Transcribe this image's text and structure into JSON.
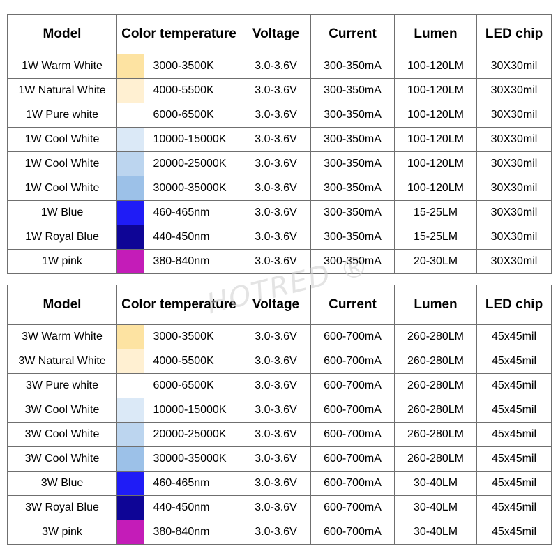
{
  "headers": {
    "model": "Model",
    "color_temperature": "Color temperature",
    "voltage": "Voltage",
    "current": "Current",
    "lumen": "Lumen",
    "led_chip": "LED chip"
  },
  "watermark": "HOTRED ®",
  "table_1w": [
    {
      "model": "1W Warm White",
      "swatch": "#fde3a2",
      "temp": "3000-3500K",
      "voltage": "3.0-3.6V",
      "current": "300-350mA",
      "lumen": "100-120LM",
      "chip": "30X30mil"
    },
    {
      "model": "1W Natural White",
      "swatch": "#fff0d2",
      "temp": "4000-5500K",
      "voltage": "3.0-3.6V",
      "current": "300-350mA",
      "lumen": "100-120LM",
      "chip": "30X30mil"
    },
    {
      "model": "1W Pure white",
      "swatch": "#ffffff",
      "temp": "6000-6500K",
      "voltage": "3.0-3.6V",
      "current": "300-350mA",
      "lumen": "100-120LM",
      "chip": "30X30mil"
    },
    {
      "model": "1W Cool White",
      "swatch": "#dbe9f7",
      "temp": "10000-15000K",
      "voltage": "3.0-3.6V",
      "current": "300-350mA",
      "lumen": "100-120LM",
      "chip": "30X30mil"
    },
    {
      "model": "1W Cool White",
      "swatch": "#bcd5ef",
      "temp": "20000-25000K",
      "voltage": "3.0-3.6V",
      "current": "300-350mA",
      "lumen": "100-120LM",
      "chip": "30X30mil"
    },
    {
      "model": "1W Cool White",
      "swatch": "#9cc1e8",
      "temp": "30000-35000K",
      "voltage": "3.0-3.6V",
      "current": "300-350mA",
      "lumen": "100-120LM",
      "chip": "30X30mil"
    },
    {
      "model": "1W Blue",
      "swatch": "#1f1cf6",
      "temp": "460-465nm",
      "voltage": "3.0-3.6V",
      "current": "300-350mA",
      "lumen": "15-25LM",
      "chip": "30X30mil"
    },
    {
      "model": "1W Royal Blue",
      "swatch": "#0e0596",
      "temp": "440-450nm",
      "voltage": "3.0-3.6V",
      "current": "300-350mA",
      "lumen": "15-25LM",
      "chip": "30X30mil"
    },
    {
      "model": "1W pink",
      "swatch": "#c41cb8",
      "temp": "380-840nm",
      "voltage": "3.0-3.6V",
      "current": "300-350mA",
      "lumen": "20-30LM",
      "chip": "30X30mil"
    }
  ],
  "table_3w": [
    {
      "model": "3W Warm White",
      "swatch": "#fde3a2",
      "temp": "3000-3500K",
      "voltage": "3.0-3.6V",
      "current": "600-700mA",
      "lumen": "260-280LM",
      "chip": "45x45mil"
    },
    {
      "model": "3W Natural White",
      "swatch": "#fff0d2",
      "temp": "4000-5500K",
      "voltage": "3.0-3.6V",
      "current": "600-700mA",
      "lumen": "260-280LM",
      "chip": "45x45mil"
    },
    {
      "model": "3W Pure white",
      "swatch": "#ffffff",
      "temp": "6000-6500K",
      "voltage": "3.0-3.6V",
      "current": "600-700mA",
      "lumen": "260-280LM",
      "chip": "45x45mil"
    },
    {
      "model": "3W Cool White",
      "swatch": "#dbe9f7",
      "temp": "10000-15000K",
      "voltage": "3.0-3.6V",
      "current": "600-700mA",
      "lumen": "260-280LM",
      "chip": "45x45mil"
    },
    {
      "model": "3W Cool White",
      "swatch": "#bcd5ef",
      "temp": "20000-25000K",
      "voltage": "3.0-3.6V",
      "current": "600-700mA",
      "lumen": "260-280LM",
      "chip": "45x45mil"
    },
    {
      "model": "3W Cool White",
      "swatch": "#9cc1e8",
      "temp": "30000-35000K",
      "voltage": "3.0-3.6V",
      "current": "600-700mA",
      "lumen": "260-280LM",
      "chip": "45x45mil"
    },
    {
      "model": "3W Blue",
      "swatch": "#1f1cf6",
      "temp": "460-465nm",
      "voltage": "3.0-3.6V",
      "current": "600-700mA",
      "lumen": "30-40LM",
      "chip": "45x45mil"
    },
    {
      "model": "3W Royal Blue",
      "swatch": "#0e0596",
      "temp": "440-450nm",
      "voltage": "3.0-3.6V",
      "current": "600-700mA",
      "lumen": "30-40LM",
      "chip": "45x45mil"
    },
    {
      "model": "3W pink",
      "swatch": "#c41cb8",
      "temp": "380-840nm",
      "voltage": "3.0-3.6V",
      "current": "600-700mA",
      "lumen": "30-40LM",
      "chip": "45x45mil"
    }
  ]
}
